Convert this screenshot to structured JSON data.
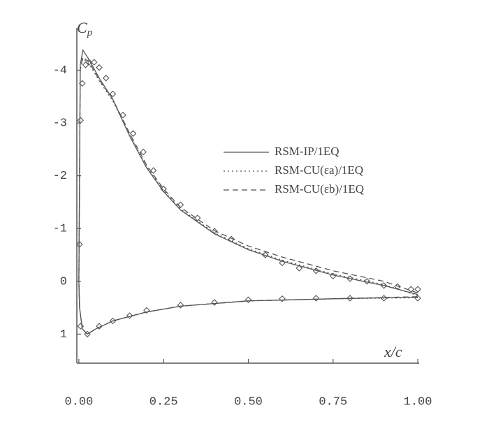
{
  "chart_data": {
    "type": "line",
    "y_label": "C",
    "y_label_subscript": "p",
    "x_label": "x/c",
    "xlim": [
      -0.006,
      1.004
    ],
    "ylim": [
      -4.8,
      1.55
    ],
    "y_inverted": true,
    "xticks": [
      {
        "value": 0,
        "label": "0.00"
      },
      {
        "value": 0.25,
        "label": "0.25"
      },
      {
        "value": 0.5,
        "label": "0.50"
      },
      {
        "value": 0.75,
        "label": "0.75"
      },
      {
        "value": 1,
        "label": "1.00"
      }
    ],
    "yticks": [
      -4,
      -3,
      -2,
      -1,
      0,
      1
    ],
    "legend": "right",
    "series": [
      {
        "name": "RSM-IP/1EQ",
        "color": "#555555",
        "dash": "none",
        "x": [
          1.0,
          0.9,
          0.75,
          0.6,
          0.5,
          0.4,
          0.3,
          0.25,
          0.2,
          0.15,
          0.1,
          0.06,
          0.03,
          0.012,
          0.004,
          0.0,
          0.002,
          0.01,
          0.025,
          0.05,
          0.1,
          0.2,
          0.3,
          0.5,
          0.75,
          1.0
        ],
        "values": [
          0.25,
          0.08,
          -0.12,
          -0.38,
          -0.6,
          -0.9,
          -1.35,
          -1.7,
          -2.15,
          -2.75,
          -3.45,
          -3.85,
          -4.2,
          -4.38,
          -4.1,
          0.0,
          0.5,
          0.9,
          1.0,
          0.9,
          0.75,
          0.58,
          0.47,
          0.37,
          0.33,
          0.3
        ]
      },
      {
        "name": "RSM-CU(εa)/1EQ",
        "color": "#555555",
        "dash": "2,4",
        "x": [
          1.0,
          0.9,
          0.75,
          0.6,
          0.5,
          0.4,
          0.3,
          0.25,
          0.2,
          0.15,
          0.1,
          0.06,
          0.03,
          0.012,
          0.004,
          0.0,
          0.002,
          0.01,
          0.025,
          0.05,
          0.1,
          0.2,
          0.3,
          0.5,
          0.75,
          1.0
        ],
        "values": [
          0.27,
          0.06,
          -0.14,
          -0.4,
          -0.62,
          -0.92,
          -1.37,
          -1.72,
          -2.17,
          -2.77,
          -3.42,
          -3.8,
          -4.12,
          -4.22,
          -4.0,
          0.0,
          0.5,
          0.9,
          1.0,
          0.9,
          0.75,
          0.58,
          0.47,
          0.37,
          0.33,
          0.31
        ]
      },
      {
        "name": "RSM-CU(εb)/1EQ",
        "color": "#555555",
        "dash": "8,5",
        "x": [
          1.0,
          0.9,
          0.75,
          0.6,
          0.5,
          0.4,
          0.3,
          0.25,
          0.2,
          0.15,
          0.1,
          0.06,
          0.03,
          0.012,
          0.004,
          0.0,
          0.002,
          0.01,
          0.025,
          0.05,
          0.1,
          0.2,
          0.3,
          0.5,
          0.75,
          1.0
        ],
        "values": [
          0.22,
          0.0,
          -0.2,
          -0.46,
          -0.67,
          -0.96,
          -1.4,
          -1.75,
          -2.2,
          -2.8,
          -3.45,
          -3.82,
          -4.15,
          -4.25,
          -4.02,
          0.0,
          0.5,
          0.9,
          1.0,
          0.9,
          0.75,
          0.58,
          0.47,
          0.37,
          0.33,
          0.29
        ]
      },
      {
        "type": "scatter",
        "color": "#555555",
        "x": [
          0.002,
          0.005,
          0.01,
          0.02,
          0.03,
          0.045,
          0.06,
          0.08,
          0.1,
          0.13,
          0.16,
          0.19,
          0.22,
          0.25,
          0.3,
          0.35,
          0.4,
          0.45,
          0.55,
          0.6,
          0.65,
          0.7,
          0.75,
          0.8,
          0.85,
          0.9,
          0.94,
          0.98,
          1.0,
          0.005,
          0.025,
          0.06,
          0.1,
          0.15,
          0.2,
          0.3,
          0.4,
          0.5,
          0.6,
          0.7,
          0.8,
          0.9,
          1.0
        ],
        "values": [
          -0.7,
          -3.05,
          -3.75,
          -4.1,
          -4.15,
          -4.15,
          -4.05,
          -3.85,
          -3.55,
          -3.15,
          -2.8,
          -2.45,
          -2.1,
          -1.75,
          -1.45,
          -1.2,
          -0.95,
          -0.8,
          -0.5,
          -0.35,
          -0.25,
          -0.2,
          -0.1,
          -0.05,
          0.0,
          0.08,
          0.1,
          0.15,
          0.15,
          0.85,
          1.0,
          0.85,
          0.75,
          0.65,
          0.55,
          0.45,
          0.4,
          0.35,
          0.33,
          0.32,
          0.32,
          0.32,
          0.32
        ]
      }
    ]
  }
}
